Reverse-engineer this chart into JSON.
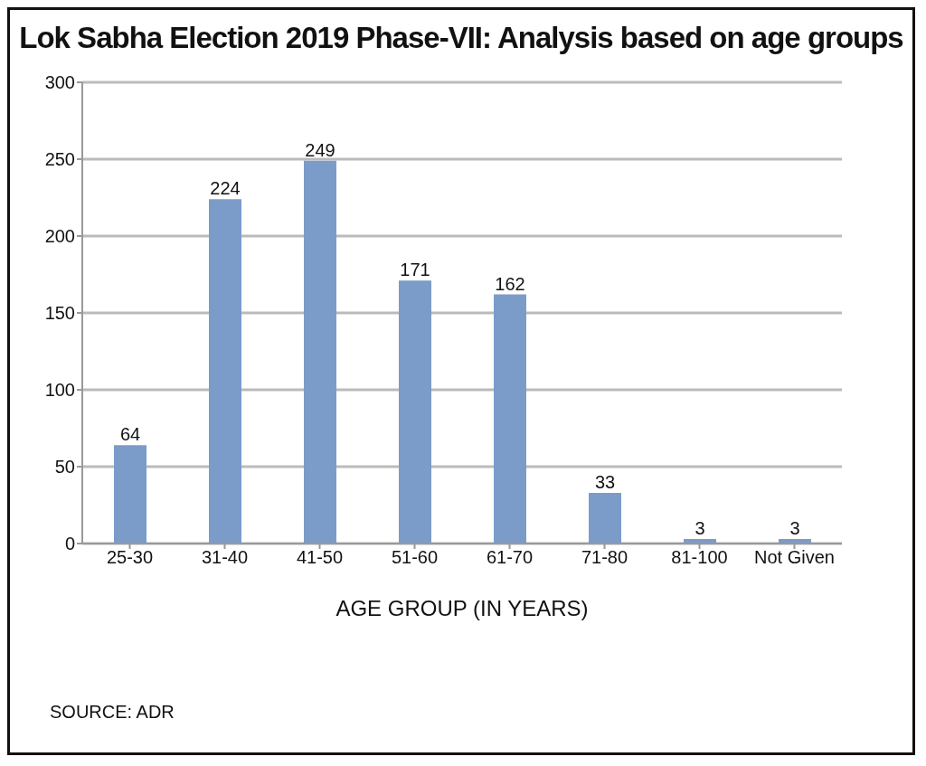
{
  "chart_data": {
    "type": "bar",
    "title": "Lok Sabha Election 2019 Phase-VII: Analysis based on age groups",
    "xlabel": "AGE GROUP (IN YEARS)",
    "categories": [
      "25-30",
      "31-40",
      "41-50",
      "51-60",
      "61-70",
      "71-80",
      "81-100",
      "Not Given"
    ],
    "values": [
      64,
      224,
      249,
      171,
      162,
      33,
      3,
      3
    ],
    "color": "#7b9cc9",
    "ylim": [
      0,
      300
    ],
    "yticks": [
      0,
      50,
      100,
      150,
      200,
      250,
      300
    ],
    "grid": "y",
    "data_labels": true,
    "annotations": [
      "SOURCE: ADR"
    ]
  }
}
